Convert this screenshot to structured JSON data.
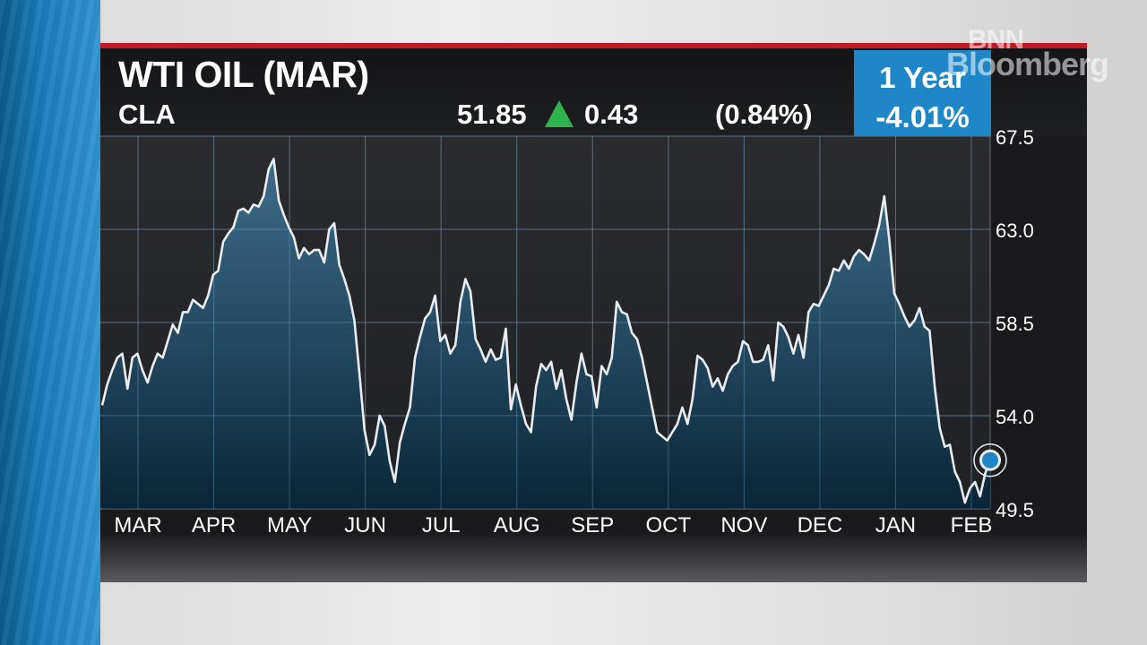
{
  "header": {
    "title": "WTI OIL (MAR)",
    "ticker": "CLA",
    "price": "51.85",
    "change": "0.43",
    "change_pct": "(0.84%)",
    "direction": "up",
    "period_label": "1 Year",
    "period_change": "-4.01%"
  },
  "watermark": {
    "line1": "BNN",
    "line2": "Bloomberg"
  },
  "colors": {
    "accent_red": "#c01a24",
    "up_green": "#2fb34a",
    "period_blue": "#1f87c7",
    "line": "#e9edf1",
    "area_top": "#3f6f8e",
    "area_bottom": "#0a2638"
  },
  "chart_data": {
    "type": "area",
    "title": "WTI OIL (MAR)",
    "xlabel": "",
    "ylabel": "",
    "x_ticks": [
      "MAR",
      "APR",
      "MAY",
      "JUN",
      "JUL",
      "AUG",
      "SEP",
      "OCT",
      "NOV",
      "DEC",
      "JAN",
      "FEB"
    ],
    "y_ticks": [
      "67.5",
      "63.0",
      "58.5",
      "54.0",
      "49.5"
    ],
    "ylim": [
      49.5,
      67.5
    ],
    "y_axis_side": "right",
    "grid": true,
    "last_value": 51.85,
    "series": [
      {
        "values": [
          54.5,
          55.5,
          56.2,
          56.8,
          57.0,
          55.3,
          56.8,
          57.0,
          56.2,
          55.6,
          56.4,
          57.0,
          56.8,
          57.6,
          58.4,
          58.0,
          59.0,
          59.0,
          59.6,
          59.4,
          59.2,
          59.8,
          60.8,
          61.0,
          62.4,
          62.8,
          63.1,
          63.9,
          64.0,
          63.8,
          64.2,
          64.1,
          64.6,
          65.9,
          66.4,
          64.4,
          63.7,
          63.1,
          62.6,
          61.6,
          62.1,
          61.8,
          62.0,
          62.0,
          61.4,
          63.0,
          63.3,
          61.3,
          60.6,
          59.8,
          58.6,
          56.0,
          53.3,
          52.1,
          52.6,
          54.0,
          53.5,
          51.8,
          50.8,
          52.7,
          53.6,
          54.4,
          56.8,
          57.8,
          58.7,
          59.0,
          59.8,
          57.6,
          57.9,
          57.0,
          57.4,
          59.5,
          60.6,
          60.0,
          57.7,
          57.2,
          56.6,
          57.2,
          56.7,
          56.8,
          58.2,
          54.3,
          55.5,
          54.5,
          53.6,
          53.2,
          55.4,
          56.5,
          56.2,
          56.6,
          55.3,
          56.2,
          54.8,
          53.8,
          55.6,
          57.0,
          56.0,
          55.9,
          54.4,
          56.4,
          56.0,
          56.8,
          59.5,
          59.0,
          58.9,
          58.0,
          57.7,
          56.8,
          55.6,
          54.4,
          53.2,
          53.0,
          52.8,
          53.2,
          53.6,
          54.4,
          53.6,
          54.8,
          56.9,
          56.7,
          56.3,
          55.4,
          55.8,
          55.2,
          56.0,
          56.4,
          56.6,
          57.6,
          57.4,
          56.6,
          56.6,
          56.7,
          57.4,
          55.7,
          58.5,
          58.3,
          57.8,
          57.0,
          57.9,
          56.8,
          59.0,
          59.4,
          59.3,
          59.8,
          60.3,
          61.1,
          61.0,
          61.5,
          61.1,
          61.7,
          62.0,
          61.8,
          61.5,
          62.3,
          63.2,
          64.6,
          62.5,
          59.9,
          59.4,
          58.8,
          58.3,
          58.6,
          59.2,
          58.3,
          58.1,
          55.4,
          53.4,
          52.5,
          52.6,
          51.3,
          50.8,
          49.8,
          50.5,
          50.8,
          50.1,
          51.2,
          51.85
        ]
      }
    ]
  }
}
